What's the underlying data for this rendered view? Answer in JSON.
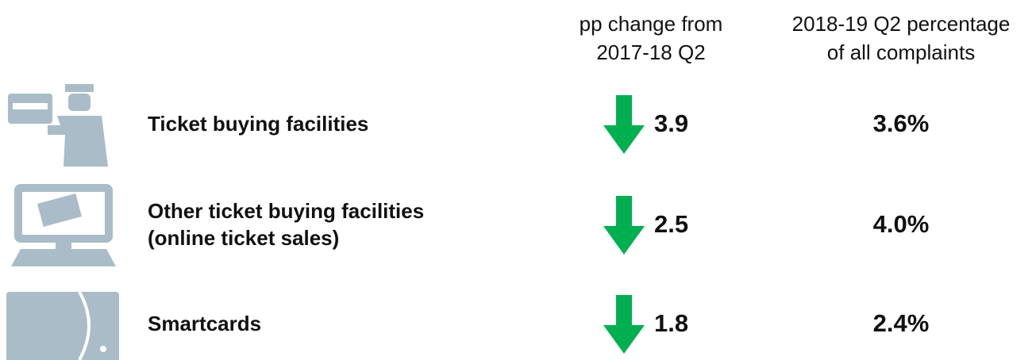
{
  "header": {
    "columns": [
      {
        "lines": [
          "pp change from",
          "2017-18 Q2"
        ]
      },
      {
        "lines": [
          "2018-19 Q2 percentage",
          "of all complaints"
        ]
      }
    ]
  },
  "rows": [
    {
      "label": [
        "Ticket buying facilities"
      ],
      "change": "3.9",
      "percentage": "3.6%"
    },
    {
      "label": [
        "Other ticket buying facilities",
        "(online ticket sales)"
      ],
      "change": "2.5",
      "percentage": "4.0%"
    },
    {
      "label": [
        "Smartcards"
      ],
      "change": "1.8",
      "percentage": "2.4%"
    }
  ]
}
